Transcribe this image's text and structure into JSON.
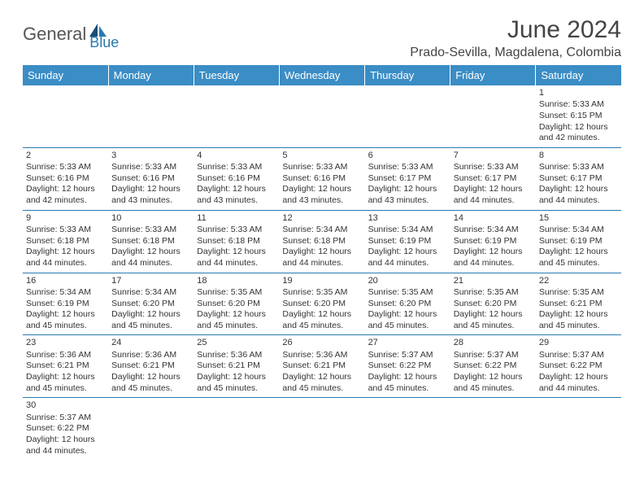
{
  "logo": {
    "text1": "General",
    "text2": "Blue"
  },
  "title": "June 2024",
  "location": "Prado-Sevilla, Magdalena, Colombia",
  "colors": {
    "header_bg": "#3b8dc5",
    "header_text": "#ffffff",
    "border": "#2a7ab0",
    "text": "#333333",
    "logo_gray": "#555555",
    "logo_blue": "#2a7ab0"
  },
  "weekdays": [
    "Sunday",
    "Monday",
    "Tuesday",
    "Wednesday",
    "Thursday",
    "Friday",
    "Saturday"
  ],
  "weeks": [
    [
      null,
      null,
      null,
      null,
      null,
      null,
      {
        "n": "1",
        "sr": "Sunrise: 5:33 AM",
        "ss": "Sunset: 6:15 PM",
        "dl1": "Daylight: 12 hours",
        "dl2": "and 42 minutes."
      }
    ],
    [
      {
        "n": "2",
        "sr": "Sunrise: 5:33 AM",
        "ss": "Sunset: 6:16 PM",
        "dl1": "Daylight: 12 hours",
        "dl2": "and 42 minutes."
      },
      {
        "n": "3",
        "sr": "Sunrise: 5:33 AM",
        "ss": "Sunset: 6:16 PM",
        "dl1": "Daylight: 12 hours",
        "dl2": "and 43 minutes."
      },
      {
        "n": "4",
        "sr": "Sunrise: 5:33 AM",
        "ss": "Sunset: 6:16 PM",
        "dl1": "Daylight: 12 hours",
        "dl2": "and 43 minutes."
      },
      {
        "n": "5",
        "sr": "Sunrise: 5:33 AM",
        "ss": "Sunset: 6:16 PM",
        "dl1": "Daylight: 12 hours",
        "dl2": "and 43 minutes."
      },
      {
        "n": "6",
        "sr": "Sunrise: 5:33 AM",
        "ss": "Sunset: 6:17 PM",
        "dl1": "Daylight: 12 hours",
        "dl2": "and 43 minutes."
      },
      {
        "n": "7",
        "sr": "Sunrise: 5:33 AM",
        "ss": "Sunset: 6:17 PM",
        "dl1": "Daylight: 12 hours",
        "dl2": "and 44 minutes."
      },
      {
        "n": "8",
        "sr": "Sunrise: 5:33 AM",
        "ss": "Sunset: 6:17 PM",
        "dl1": "Daylight: 12 hours",
        "dl2": "and 44 minutes."
      }
    ],
    [
      {
        "n": "9",
        "sr": "Sunrise: 5:33 AM",
        "ss": "Sunset: 6:18 PM",
        "dl1": "Daylight: 12 hours",
        "dl2": "and 44 minutes."
      },
      {
        "n": "10",
        "sr": "Sunrise: 5:33 AM",
        "ss": "Sunset: 6:18 PM",
        "dl1": "Daylight: 12 hours",
        "dl2": "and 44 minutes."
      },
      {
        "n": "11",
        "sr": "Sunrise: 5:33 AM",
        "ss": "Sunset: 6:18 PM",
        "dl1": "Daylight: 12 hours",
        "dl2": "and 44 minutes."
      },
      {
        "n": "12",
        "sr": "Sunrise: 5:34 AM",
        "ss": "Sunset: 6:18 PM",
        "dl1": "Daylight: 12 hours",
        "dl2": "and 44 minutes."
      },
      {
        "n": "13",
        "sr": "Sunrise: 5:34 AM",
        "ss": "Sunset: 6:19 PM",
        "dl1": "Daylight: 12 hours",
        "dl2": "and 44 minutes."
      },
      {
        "n": "14",
        "sr": "Sunrise: 5:34 AM",
        "ss": "Sunset: 6:19 PM",
        "dl1": "Daylight: 12 hours",
        "dl2": "and 44 minutes."
      },
      {
        "n": "15",
        "sr": "Sunrise: 5:34 AM",
        "ss": "Sunset: 6:19 PM",
        "dl1": "Daylight: 12 hours",
        "dl2": "and 45 minutes."
      }
    ],
    [
      {
        "n": "16",
        "sr": "Sunrise: 5:34 AM",
        "ss": "Sunset: 6:19 PM",
        "dl1": "Daylight: 12 hours",
        "dl2": "and 45 minutes."
      },
      {
        "n": "17",
        "sr": "Sunrise: 5:34 AM",
        "ss": "Sunset: 6:20 PM",
        "dl1": "Daylight: 12 hours",
        "dl2": "and 45 minutes."
      },
      {
        "n": "18",
        "sr": "Sunrise: 5:35 AM",
        "ss": "Sunset: 6:20 PM",
        "dl1": "Daylight: 12 hours",
        "dl2": "and 45 minutes."
      },
      {
        "n": "19",
        "sr": "Sunrise: 5:35 AM",
        "ss": "Sunset: 6:20 PM",
        "dl1": "Daylight: 12 hours",
        "dl2": "and 45 minutes."
      },
      {
        "n": "20",
        "sr": "Sunrise: 5:35 AM",
        "ss": "Sunset: 6:20 PM",
        "dl1": "Daylight: 12 hours",
        "dl2": "and 45 minutes."
      },
      {
        "n": "21",
        "sr": "Sunrise: 5:35 AM",
        "ss": "Sunset: 6:20 PM",
        "dl1": "Daylight: 12 hours",
        "dl2": "and 45 minutes."
      },
      {
        "n": "22",
        "sr": "Sunrise: 5:35 AM",
        "ss": "Sunset: 6:21 PM",
        "dl1": "Daylight: 12 hours",
        "dl2": "and 45 minutes."
      }
    ],
    [
      {
        "n": "23",
        "sr": "Sunrise: 5:36 AM",
        "ss": "Sunset: 6:21 PM",
        "dl1": "Daylight: 12 hours",
        "dl2": "and 45 minutes."
      },
      {
        "n": "24",
        "sr": "Sunrise: 5:36 AM",
        "ss": "Sunset: 6:21 PM",
        "dl1": "Daylight: 12 hours",
        "dl2": "and 45 minutes."
      },
      {
        "n": "25",
        "sr": "Sunrise: 5:36 AM",
        "ss": "Sunset: 6:21 PM",
        "dl1": "Daylight: 12 hours",
        "dl2": "and 45 minutes."
      },
      {
        "n": "26",
        "sr": "Sunrise: 5:36 AM",
        "ss": "Sunset: 6:21 PM",
        "dl1": "Daylight: 12 hours",
        "dl2": "and 45 minutes."
      },
      {
        "n": "27",
        "sr": "Sunrise: 5:37 AM",
        "ss": "Sunset: 6:22 PM",
        "dl1": "Daylight: 12 hours",
        "dl2": "and 45 minutes."
      },
      {
        "n": "28",
        "sr": "Sunrise: 5:37 AM",
        "ss": "Sunset: 6:22 PM",
        "dl1": "Daylight: 12 hours",
        "dl2": "and 45 minutes."
      },
      {
        "n": "29",
        "sr": "Sunrise: 5:37 AM",
        "ss": "Sunset: 6:22 PM",
        "dl1": "Daylight: 12 hours",
        "dl2": "and 44 minutes."
      }
    ],
    [
      {
        "n": "30",
        "sr": "Sunrise: 5:37 AM",
        "ss": "Sunset: 6:22 PM",
        "dl1": "Daylight: 12 hours",
        "dl2": "and 44 minutes."
      },
      null,
      null,
      null,
      null,
      null,
      null
    ]
  ]
}
